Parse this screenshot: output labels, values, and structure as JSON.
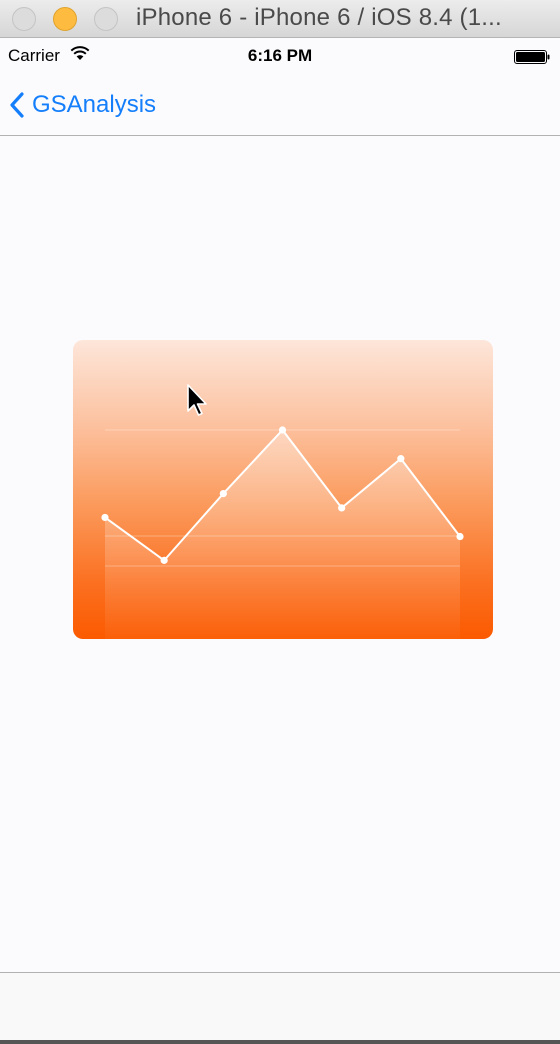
{
  "window": {
    "title": "iPhone 6 - iPhone 6 / iOS 8.4 (1..."
  },
  "status_bar": {
    "carrier": "Carrier",
    "time": "6:16 PM"
  },
  "nav": {
    "back_label": "GSAnalysis"
  },
  "chart_data": {
    "type": "line",
    "series": [
      {
        "values": [
          45,
          18,
          60,
          100,
          51,
          82,
          33
        ]
      }
    ],
    "ylim": [
      0,
      100
    ],
    "grid": "horizontal",
    "fill": "area-gradient",
    "colors": {
      "line": "#ffffff",
      "card_top": "#fde6da",
      "card_bottom": "#fb5a00"
    }
  }
}
